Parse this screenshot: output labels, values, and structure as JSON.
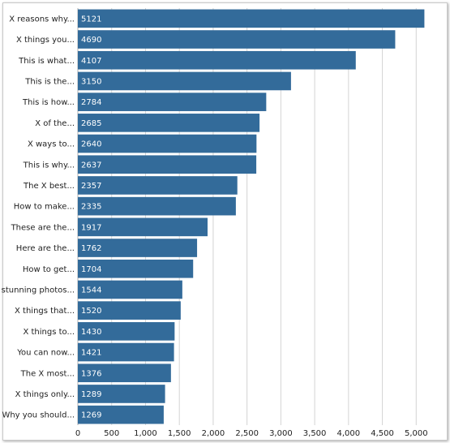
{
  "chart_data": {
    "type": "bar",
    "orientation": "horizontal",
    "categories": [
      "X reasons why...",
      "X things you...",
      "This is what...",
      "This is the...",
      "This is how...",
      "X of the...",
      "X ways to...",
      "This is why...",
      "The X best...",
      "How to make...",
      "These are the...",
      "Here are the...",
      "How to get...",
      "X stunning photos...",
      "X things that...",
      "X things to...",
      "You can now...",
      "The X most...",
      "X things only...",
      "Why you should..."
    ],
    "values": [
      5121,
      4690,
      4107,
      3150,
      2784,
      2685,
      2640,
      2637,
      2357,
      2335,
      1917,
      1762,
      1704,
      1544,
      1520,
      1430,
      1421,
      1376,
      1289,
      1269
    ],
    "x_ticks": [
      0,
      500,
      1000,
      1500,
      2000,
      2500,
      3000,
      3500,
      4000,
      4500,
      5000
    ],
    "x_tick_labels": [
      "0",
      "500",
      "1,000",
      "1,500",
      "2,000",
      "2,500",
      "3,000",
      "3,500",
      "4,000",
      "4,500",
      "5,000"
    ],
    "xlim": [
      0,
      5200
    ],
    "grid": true,
    "bar_color": "#336b9a",
    "title": "",
    "xlabel": "",
    "ylabel": ""
  }
}
